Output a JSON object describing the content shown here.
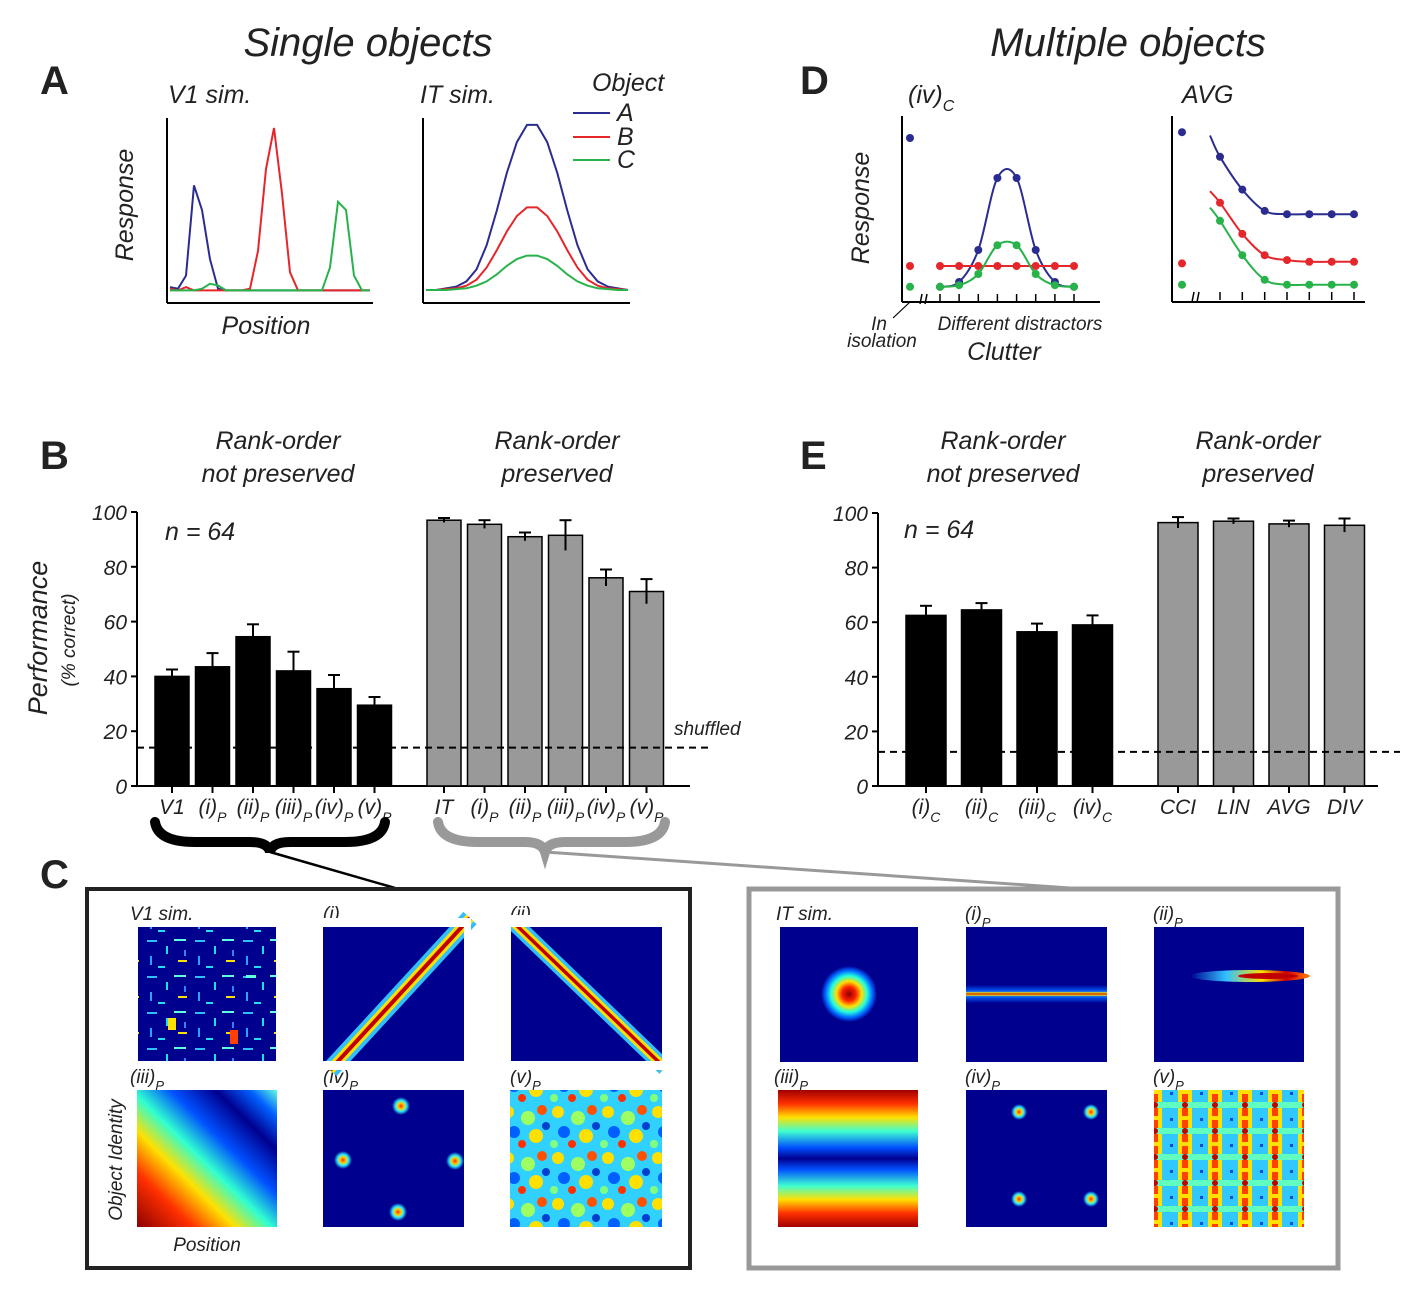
{
  "headings": {
    "single": "Single objects",
    "multiple": "Multiple objects"
  },
  "panel_letters": {
    "A": "A",
    "B": "B",
    "C": "C",
    "D": "D",
    "E": "E"
  },
  "colors": {
    "A": "#2a2d8f",
    "B": "#e5262b",
    "C": "#27b24a",
    "bar_black": "#000000",
    "bar_gray": "#999999",
    "bracket_gray": "#999999",
    "heatmap_bg": "#00008f"
  },
  "panel_A": {
    "left_title": "V1 sim.",
    "right_title": "IT sim.",
    "ylabel": "Response",
    "xlabel": "Position",
    "legend_title": "Object",
    "legend": [
      "A",
      "B",
      "C"
    ]
  },
  "panel_D": {
    "left_title": "(iv)",
    "left_title_sub": "C",
    "right_title": "AVG",
    "ylabel": "Response",
    "xlabel": "Clutter",
    "isolation_label_1": "In",
    "isolation_label_2": "isolation",
    "distractor_label": "Different distractors"
  },
  "panel_B": {
    "group_titles": [
      {
        "line1": "Rank-order",
        "line2": "not preserved"
      },
      {
        "line1": "Rank-order",
        "line2": "preserved"
      }
    ],
    "ylabel": "Performance",
    "ylabel2": "(% correct)",
    "n_label": "n = 64",
    "shuffled_label": "shuffled",
    "yticks": [
      "0",
      "20",
      "40",
      "60",
      "80",
      "100"
    ]
  },
  "panel_E": {
    "group_titles": [
      {
        "line1": "Rank-order",
        "line2": "not preserved"
      },
      {
        "line1": "Rank-order",
        "line2": "preserved"
      }
    ],
    "n_label": "n = 64",
    "yticks": [
      "0",
      "20",
      "40",
      "60",
      "80",
      "100"
    ]
  },
  "panel_C": {
    "left_labels": [
      {
        "main": "V1 sim.",
        "sub": ""
      },
      {
        "main": "(i)",
        "sub": "P"
      },
      {
        "main": "(ii)",
        "sub": "P"
      },
      {
        "main": "(iii)",
        "sub": "P"
      },
      {
        "main": "(iv)",
        "sub": "P"
      },
      {
        "main": "(v)",
        "sub": "P"
      }
    ],
    "right_labels": [
      {
        "main": "IT sim.",
        "sub": ""
      },
      {
        "main": "(i)",
        "sub": "P"
      },
      {
        "main": "(ii)",
        "sub": "P"
      },
      {
        "main": "(iii)",
        "sub": "P"
      },
      {
        "main": "(iv)",
        "sub": "P"
      },
      {
        "main": "(v)",
        "sub": "P"
      }
    ],
    "ylabel": "Object Identity",
    "xlabel": "Position"
  },
  "chart_data": [
    {
      "id": "A-V1",
      "type": "line",
      "title": "V1 sim.",
      "ylabel": "Response",
      "xlabel": "Position",
      "x": [
        0,
        4,
        8,
        12,
        16,
        20,
        24,
        28,
        32,
        36,
        40,
        44,
        48,
        52,
        56,
        60,
        64,
        68,
        72,
        76,
        80,
        84,
        88,
        92,
        96,
        100
      ],
      "series": [
        {
          "name": "A",
          "values": [
            0.03,
            0.02,
            0.1,
            0.65,
            0.5,
            0.2,
            0.02,
            0.01,
            0.01,
            0.01,
            0.01,
            0.01,
            0.01,
            0.01,
            0.01,
            0.01,
            0.01,
            0.01,
            0.01,
            0.01,
            0.01,
            0.01,
            0.01,
            0.01,
            0.01,
            0.01
          ]
        },
        {
          "name": "B",
          "values": [
            0.02,
            0.01,
            0.03,
            0.01,
            0.01,
            0.01,
            0.01,
            0.01,
            0.01,
            0.01,
            0.02,
            0.25,
            0.75,
            1.0,
            0.6,
            0.12,
            0.01,
            0.01,
            0.01,
            0.01,
            0.01,
            0.01,
            0.01,
            0.01,
            0.01,
            0.01
          ]
        },
        {
          "name": "C",
          "values": [
            0.01,
            0.01,
            0.01,
            0.01,
            0.02,
            0.05,
            0.04,
            0.01,
            0.01,
            0.01,
            0.01,
            0.01,
            0.01,
            0.01,
            0.01,
            0.01,
            0.01,
            0.01,
            0.01,
            0.01,
            0.15,
            0.55,
            0.5,
            0.1,
            0.01,
            0.01
          ]
        }
      ]
    },
    {
      "id": "A-IT",
      "type": "line",
      "title": "IT sim.",
      "legend_title": "Object",
      "x": [
        0,
        5,
        10,
        15,
        20,
        25,
        30,
        35,
        40,
        45,
        50,
        55,
        60,
        65,
        70,
        75,
        80,
        85,
        90,
        95,
        100
      ],
      "series": [
        {
          "name": "A",
          "values": [
            0,
            0,
            0.01,
            0.02,
            0.05,
            0.12,
            0.26,
            0.46,
            0.68,
            0.86,
            0.96,
            0.96,
            0.86,
            0.68,
            0.46,
            0.26,
            0.12,
            0.05,
            0.02,
            0.01,
            0
          ]
        },
        {
          "name": "B",
          "values": [
            0,
            0,
            0.005,
            0.01,
            0.025,
            0.06,
            0.13,
            0.23,
            0.34,
            0.43,
            0.48,
            0.48,
            0.43,
            0.34,
            0.23,
            0.13,
            0.06,
            0.025,
            0.01,
            0.005,
            0
          ]
        },
        {
          "name": "C",
          "values": [
            0,
            0,
            0,
            0.005,
            0.01,
            0.025,
            0.05,
            0.09,
            0.14,
            0.18,
            0.2,
            0.2,
            0.18,
            0.14,
            0.09,
            0.05,
            0.025,
            0.01,
            0.005,
            0,
            0
          ]
        }
      ]
    },
    {
      "id": "D-iv",
      "type": "line",
      "title": "(iv)C",
      "ylabel": "Response",
      "xlabel": "Clutter",
      "isolation": {
        "A": 0.95,
        "B": 0.15,
        "C": 0.02
      },
      "x": [
        0,
        1,
        2,
        3,
        4,
        5,
        6,
        7
      ],
      "series": [
        {
          "name": "A",
          "values": [
            0.02,
            0.05,
            0.25,
            0.7,
            0.7,
            0.25,
            0.05,
            0.02
          ]
        },
        {
          "name": "B",
          "values": [
            0.15,
            0.15,
            0.15,
            0.15,
            0.15,
            0.15,
            0.15,
            0.15
          ]
        },
        {
          "name": "C",
          "values": [
            0.02,
            0.03,
            0.1,
            0.28,
            0.28,
            0.1,
            0.03,
            0.02
          ]
        }
      ]
    },
    {
      "id": "D-AVG",
      "type": "line",
      "title": "AVG",
      "isolation": {
        "A": 0.95,
        "B": 0.15,
        "C": 0.02
      },
      "x": [
        0,
        1,
        2,
        3,
        4,
        5,
        6
      ],
      "series": [
        {
          "name": "A",
          "values": [
            0.8,
            0.6,
            0.47,
            0.45,
            0.45,
            0.45,
            0.45
          ]
        },
        {
          "name": "B",
          "values": [
            0.52,
            0.33,
            0.2,
            0.17,
            0.16,
            0.16,
            0.16
          ]
        },
        {
          "name": "C",
          "values": [
            0.41,
            0.2,
            0.05,
            0.02,
            0.02,
            0.02,
            0.02
          ]
        }
      ]
    },
    {
      "id": "B",
      "type": "bar",
      "ylabel": "Performance (% correct)",
      "ylim": [
        0,
        100
      ],
      "shuffled": 14,
      "groups": [
        {
          "label": "Rank-order not preserved",
          "style": "black",
          "bars": [
            {
              "label": "V1",
              "sub": "",
              "value": 40,
              "err": 2.5
            },
            {
              "label": "(i)",
              "sub": "P",
              "value": 43.5,
              "err": 5
            },
            {
              "label": "(ii)",
              "sub": "P",
              "value": 54.5,
              "err": 4.5
            },
            {
              "label": "(iii)",
              "sub": "P",
              "value": 42,
              "err": 7
            },
            {
              "label": "(iv)",
              "sub": "P",
              "value": 35.5,
              "err": 5
            },
            {
              "label": "(v)",
              "sub": "P",
              "value": 29.5,
              "err": 3
            }
          ]
        },
        {
          "label": "Rank-order preserved",
          "style": "gray",
          "bars": [
            {
              "label": "IT",
              "sub": "",
              "value": 97,
              "err": 0.8
            },
            {
              "label": "(i)",
              "sub": "P",
              "value": 95.5,
              "err": 1.5
            },
            {
              "label": "(ii)",
              "sub": "P",
              "value": 91,
              "err": 1.5
            },
            {
              "label": "(iii)",
              "sub": "P",
              "value": 91.5,
              "err": 5.5
            },
            {
              "label": "(iv)",
              "sub": "P",
              "value": 76,
              "err": 3
            },
            {
              "label": "(v)",
              "sub": "P",
              "value": 71,
              "err": 4.5
            }
          ]
        }
      ]
    },
    {
      "id": "E",
      "type": "bar",
      "ylim": [
        0,
        100
      ],
      "shuffled": 12.5,
      "groups": [
        {
          "label": "Rank-order not preserved",
          "style": "black",
          "bars": [
            {
              "label": "(i)",
              "sub": "C",
              "value": 62.5,
              "err": 3.5
            },
            {
              "label": "(ii)",
              "sub": "C",
              "value": 64.5,
              "err": 2.5
            },
            {
              "label": "(iii)",
              "sub": "C",
              "value": 56.5,
              "err": 3
            },
            {
              "label": "(iv)",
              "sub": "C",
              "value": 59,
              "err": 3.5
            }
          ]
        },
        {
          "label": "Rank-order preserved",
          "style": "gray",
          "bars": [
            {
              "label": "CCI",
              "sub": "",
              "value": 96.5,
              "err": 2
            },
            {
              "label": "LIN",
              "sub": "",
              "value": 97,
              "err": 1
            },
            {
              "label": "AVG",
              "sub": "",
              "value": 96,
              "err": 1.2
            },
            {
              "label": "DIV",
              "sub": "",
              "value": 95.5,
              "err": 2.5
            }
          ]
        }
      ]
    }
  ]
}
